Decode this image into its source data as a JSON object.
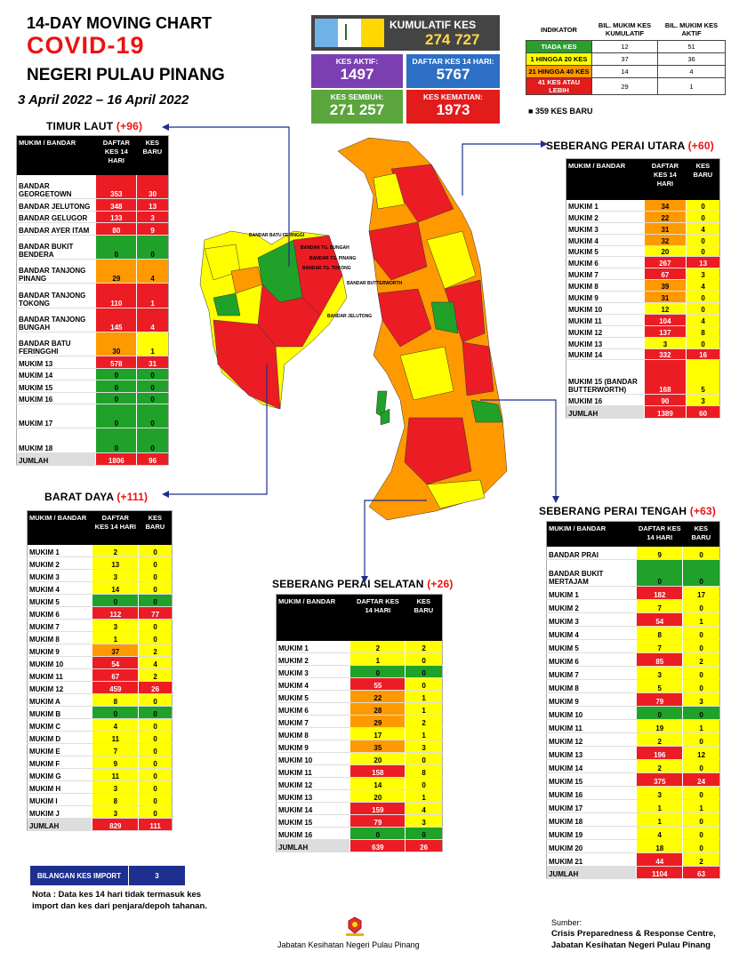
{
  "header": {
    "line1": "14-DAY MOVING CHART",
    "line2": "COVID-19",
    "line3": "NEGERI PULAU PINANG",
    "dates": "3 April 2022 – 16 April 2022"
  },
  "kumulatif": {
    "label": "KUMULATIF KES",
    "value": "274  727"
  },
  "stats": [
    {
      "label": "KES AKTIF:",
      "value": "1497",
      "color": "#7b3fb2"
    },
    {
      "label": "DAFTAR KES 14 HARI:",
      "value": "5767",
      "color": "#2c6fc4"
    },
    {
      "label": "KES SEMBUH:",
      "value": "271 257",
      "color": "#5aa53c"
    },
    {
      "label": "KES KEMATIAN:",
      "value": "1973",
      "color": "#e21b1b"
    }
  ],
  "indicator": {
    "headers": [
      "INDIKATOR",
      "BIL. MUKIM KES KUMULATIF",
      "BIL. MUKIM KES AKTIF"
    ],
    "rows": [
      {
        "label": "TIADA KES",
        "a": "12",
        "b": "51",
        "color": "#2aa02a",
        "tc": "#fff"
      },
      {
        "label": "1 HINGGA 20 KES",
        "a": "37",
        "b": "36",
        "color": "#ffff00",
        "tc": "#000"
      },
      {
        "label": "21 HINGGA 40 KES",
        "a": "14",
        "b": "4",
        "color": "#ff9900",
        "tc": "#000"
      },
      {
        "label": "41 KES ATAU LEBIH",
        "a": "29",
        "b": "1",
        "color": "#e21b1b",
        "tc": "#fff"
      }
    ],
    "note": "359 KES BARU"
  },
  "regions": {
    "timur_laut": {
      "title": "TIMUR LAUT",
      "plus": "(+96)",
      "headers": [
        "MUKIM / BANDAR",
        "DAFTAR KES 14 HARI",
        "KES BARU"
      ],
      "rows": [
        [
          "BANDAR GEORGETOWN",
          "353",
          "30",
          "r",
          "r",
          2
        ],
        [
          "BANDAR JELUTONG",
          "348",
          "13",
          "r",
          "r",
          1
        ],
        [
          "BANDAR GELUGOR",
          "133",
          "3",
          "r",
          "r",
          1
        ],
        [
          "BANDAR AYER ITAM",
          "80",
          "9",
          "r",
          "r",
          1
        ],
        [
          "BANDAR BUKIT BENDERA",
          "0",
          "0",
          "g",
          "g",
          2
        ],
        [
          "BANDAR TANJONG PINANG",
          "29",
          "4",
          "o",
          "o",
          2
        ],
        [
          "BANDAR TANJONG TOKONG",
          "110",
          "1",
          "r",
          "r",
          2
        ],
        [
          "BANDAR TANJONG BUNGAH",
          "145",
          "4",
          "r",
          "r",
          2
        ],
        [
          "BANDAR BATU FERINGGHI",
          "30",
          "1",
          "o",
          "y",
          2
        ],
        [
          "MUKIM 13",
          "578",
          "31",
          "r",
          "r",
          1
        ],
        [
          "MUKIM 14",
          "0",
          "0",
          "g",
          "g",
          1
        ],
        [
          "MUKIM 15",
          "0",
          "0",
          "g",
          "g",
          1
        ],
        [
          "MUKIM 16",
          "0",
          "0",
          "g",
          "g",
          1
        ],
        [
          "MUKIM 17",
          "0",
          "0",
          "g",
          "g",
          2
        ],
        [
          "MUKIM 18",
          "0",
          "0",
          "g",
          "g",
          2
        ]
      ],
      "total": [
        "JUMLAH",
        "1806",
        "96"
      ]
    },
    "barat_daya": {
      "title": "BARAT DAYA",
      "plus": "(+111)",
      "headers": [
        "MUKIM / BANDAR",
        "DAFTAR KES 14 HARI",
        "KES BARU"
      ],
      "rows": [
        [
          "MUKIM 1",
          "2",
          "0",
          "y",
          "y",
          1
        ],
        [
          "MUKIM 2",
          "13",
          "0",
          "y",
          "y",
          1
        ],
        [
          "MUKIM 3",
          "3",
          "0",
          "y",
          "y",
          1
        ],
        [
          "MUKIM 4",
          "14",
          "0",
          "y",
          "y",
          1
        ],
        [
          "MUKIM 5",
          "0",
          "0",
          "g",
          "g",
          1
        ],
        [
          "MUKIM 6",
          "112",
          "77",
          "r",
          "r",
          1
        ],
        [
          "MUKIM 7",
          "3",
          "0",
          "y",
          "y",
          1
        ],
        [
          "MUKIM 8",
          "1",
          "0",
          "y",
          "y",
          1
        ],
        [
          "MUKIM 9",
          "37",
          "2",
          "o",
          "y",
          1
        ],
        [
          "MUKIM 10",
          "54",
          "4",
          "r",
          "y",
          1
        ],
        [
          "MUKIM 11",
          "67",
          "2",
          "r",
          "y",
          1
        ],
        [
          "MUKIM 12",
          "459",
          "26",
          "r",
          "r",
          1
        ],
        [
          "MUKIM A",
          "8",
          "0",
          "y",
          "y",
          1
        ],
        [
          "MUKIM B",
          "0",
          "0",
          "g",
          "g",
          1
        ],
        [
          "MUKIM C",
          "4",
          "0",
          "y",
          "y",
          1
        ],
        [
          "MUKIM D",
          "11",
          "0",
          "y",
          "y",
          1
        ],
        [
          "MUKIM E",
          "7",
          "0",
          "y",
          "y",
          1
        ],
        [
          "MUKIM F",
          "9",
          "0",
          "y",
          "y",
          1
        ],
        [
          "MUKIM G",
          "11",
          "0",
          "y",
          "y",
          1
        ],
        [
          "MUKIM H",
          "3",
          "0",
          "y",
          "y",
          1
        ],
        [
          "MUKIM I",
          "8",
          "0",
          "y",
          "y",
          1
        ],
        [
          "MUKIM J",
          "3",
          "0",
          "y",
          "y",
          1
        ]
      ],
      "total": [
        "JUMLAH",
        "829",
        "111"
      ]
    },
    "spu": {
      "title": "SEBERANG PERAI UTARA",
      "plus": "(+60)",
      "headers": [
        "MUKIM / BANDAR",
        "DAFTAR KES 14 HARI",
        "KES BARU"
      ],
      "rows": [
        [
          "MUKIM 1",
          "34",
          "0",
          "o",
          "y",
          1
        ],
        [
          "MUKIM 2",
          "22",
          "0",
          "o",
          "y",
          1
        ],
        [
          "MUKIM 3",
          "31",
          "4",
          "o",
          "y",
          1
        ],
        [
          "MUKIM 4",
          "32",
          "0",
          "o",
          "y",
          1
        ],
        [
          "MUKIM 5",
          "20",
          "0",
          "y",
          "y",
          1
        ],
        [
          "MUKIM 6",
          "267",
          "13",
          "r",
          "r",
          1
        ],
        [
          "MUKIM 7",
          "67",
          "3",
          "r",
          "y",
          1
        ],
        [
          "MUKIM 8",
          "39",
          "4",
          "o",
          "y",
          1
        ],
        [
          "MUKIM 9",
          "31",
          "0",
          "o",
          "y",
          1
        ],
        [
          "MUKIM 10",
          "12",
          "0",
          "y",
          "y",
          1
        ],
        [
          "MUKIM 11",
          "104",
          "4",
          "r",
          "y",
          1
        ],
        [
          "MUKIM 12",
          "137",
          "8",
          "r",
          "y",
          1
        ],
        [
          "MUKIM 13",
          "3",
          "0",
          "y",
          "y",
          1
        ],
        [
          "MUKIM 14",
          "332",
          "16",
          "r",
          "r",
          1
        ],
        [
          "MUKIM 15 (BANDAR BUTTERWORTH)",
          "168",
          "5",
          "r",
          "y",
          3
        ],
        [
          "MUKIM 16",
          "90",
          "3",
          "r",
          "y",
          1
        ]
      ],
      "total": [
        "JUMLAH",
        "1389",
        "60"
      ]
    },
    "sps": {
      "title": "SEBERANG PERAI SELATAN",
      "plus": "(+26)",
      "headers": [
        "MUKIM / BANDAR",
        "DAFTAR KES 14 HARI",
        "KES BARU"
      ],
      "rows": [
        [
          "MUKIM 1",
          "2",
          "2",
          "y",
          "y",
          1
        ],
        [
          "MUKIM 2",
          "1",
          "0",
          "y",
          "y",
          1
        ],
        [
          "MUKIM 3",
          "0",
          "0",
          "g",
          "g",
          1
        ],
        [
          "MUKIM 4",
          "55",
          "0",
          "r",
          "y",
          1
        ],
        [
          "MUKIM 5",
          "22",
          "1",
          "o",
          "y",
          1
        ],
        [
          "MUKIM 6",
          "28",
          "1",
          "o",
          "y",
          1
        ],
        [
          "MUKIM 7",
          "29",
          "2",
          "o",
          "y",
          1
        ],
        [
          "MUKIM 8",
          "17",
          "1",
          "y",
          "y",
          1
        ],
        [
          "MUKIM 9",
          "35",
          "3",
          "o",
          "y",
          1
        ],
        [
          "MUKIM 10",
          "20",
          "0",
          "y",
          "y",
          1
        ],
        [
          "MUKIM 11",
          "158",
          "8",
          "r",
          "y",
          1
        ],
        [
          "MUKIM 12",
          "14",
          "0",
          "y",
          "y",
          1
        ],
        [
          "MUKIM 13",
          "20",
          "1",
          "y",
          "y",
          1
        ],
        [
          "MUKIM 14",
          "159",
          "4",
          "r",
          "y",
          1
        ],
        [
          "MUKIM 15",
          "79",
          "3",
          "r",
          "y",
          1
        ],
        [
          "MUKIM 16",
          "0",
          "0",
          "g",
          "g",
          1
        ]
      ],
      "total": [
        "JUMLAH",
        "639",
        "26"
      ]
    },
    "spt": {
      "title": "SEBERANG PERAI TENGAH",
      "plus": "(+63)",
      "headers": [
        "MUKIM / BANDAR",
        "DAFTAR KES 14 HARI",
        "KES BARU"
      ],
      "rows": [
        [
          "BANDAR PRAI",
          "9",
          "0",
          "y",
          "y",
          1
        ],
        [
          "BANDAR BUKIT MERTAJAM",
          "0",
          "0",
          "g",
          "g",
          2
        ],
        [
          "MUKIM 1",
          "182",
          "17",
          "r",
          "y",
          1
        ],
        [
          "MUKIM 2",
          "7",
          "0",
          "y",
          "y",
          1
        ],
        [
          "MUKIM 3",
          "54",
          "1",
          "r",
          "y",
          1
        ],
        [
          "MUKIM 4",
          "8",
          "0",
          "y",
          "y",
          1
        ],
        [
          "MUKIM 5",
          "7",
          "0",
          "y",
          "y",
          1
        ],
        [
          "MUKIM 6",
          "85",
          "2",
          "r",
          "y",
          1
        ],
        [
          "MUKIM 7",
          "3",
          "0",
          "y",
          "y",
          1
        ],
        [
          "MUKIM 8",
          "5",
          "0",
          "y",
          "y",
          1
        ],
        [
          "MUKIM 9",
          "79",
          "3",
          "r",
          "y",
          1
        ],
        [
          "MUKIM 10",
          "0",
          "0",
          "g",
          "g",
          1
        ],
        [
          "MUKIM 11",
          "19",
          "1",
          "y",
          "y",
          1
        ],
        [
          "MUKIM 12",
          "2",
          "0",
          "y",
          "y",
          1
        ],
        [
          "MUKIM 13",
          "196",
          "12",
          "r",
          "y",
          1
        ],
        [
          "MUKIM 14",
          "2",
          "0",
          "y",
          "y",
          1
        ],
        [
          "MUKIM 15",
          "375",
          "24",
          "r",
          "r",
          1
        ],
        [
          "MUKIM 16",
          "3",
          "0",
          "y",
          "y",
          1
        ],
        [
          "MUKIM 17",
          "1",
          "1",
          "y",
          "y",
          1
        ],
        [
          "MUKIM 18",
          "1",
          "0",
          "y",
          "y",
          1
        ],
        [
          "MUKIM 19",
          "4",
          "0",
          "y",
          "y",
          1
        ],
        [
          "MUKIM 20",
          "18",
          "0",
          "y",
          "y",
          1
        ],
        [
          "MUKIM 21",
          "44",
          "2",
          "r",
          "y",
          1
        ]
      ],
      "total": [
        "JUMLAH",
        "1104",
        "63"
      ]
    }
  },
  "map_labels": {
    "l1": "BANDAR BATU FERINGGI",
    "l2": "BANDAR TG. BUNGAH",
    "l3": "BANDAR TG. PINANG",
    "l4": "BANDAR TG. TOKONG",
    "l5": "BANDAR JELUTONG",
    "l6": "BANDAR BUTTERWORTH"
  },
  "import": {
    "label": "BILANGAN KES IMPORT",
    "value": "3"
  },
  "nota": "Nota : Data kes 14 hari tidak termasuk kes import dan kes dari penjara/depoh tahanan.",
  "footer": "Jabatan Kesihatan Negeri Pulau Pinang",
  "source": {
    "label": "Sumber:",
    "l1": "Crisis Preparedness & Response Centre,",
    "l2": "Jabatan Kesihatan Negeri Pulau Pinang"
  },
  "colors": {
    "r": "#ec1c24",
    "o": "#ff9900",
    "y": "#ffff00",
    "g": "#1fa12a"
  }
}
